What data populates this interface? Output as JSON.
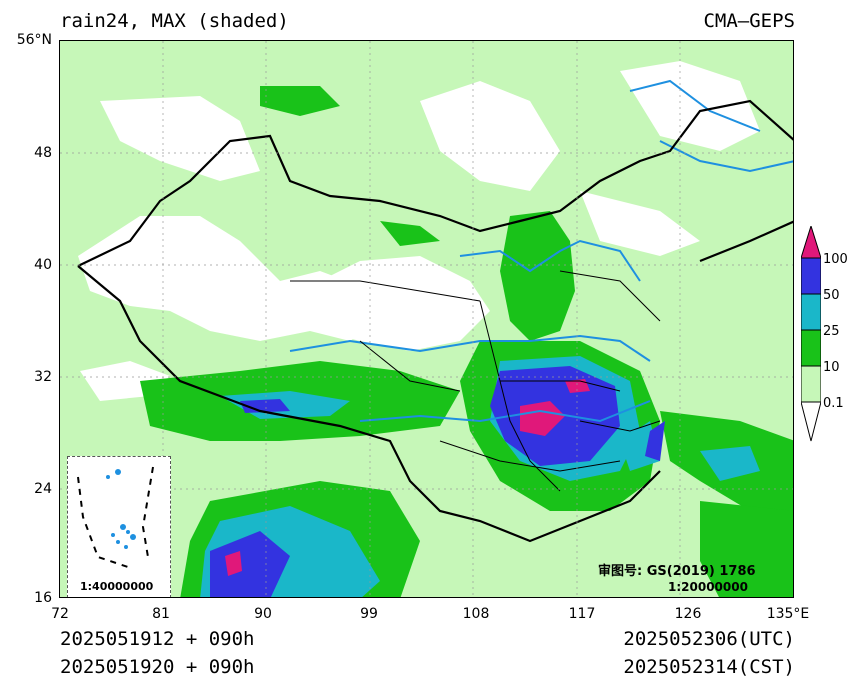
{
  "header": {
    "title": "rain24, MAX (shaded)",
    "model": "CMA—GEPS"
  },
  "footer": {
    "init_utc": "2025051912 + 090h",
    "init_cst": "2025051920 + 090h",
    "valid_utc": "2025052306(UTC)",
    "valid_cst": "2025052314(CST)"
  },
  "axes": {
    "lat_ticks": [
      "56°N",
      "48",
      "40",
      "32",
      "24",
      "16"
    ],
    "lon_ticks": [
      "72",
      "81",
      "90",
      "99",
      "108",
      "117",
      "126",
      "135°E"
    ]
  },
  "map_notes": {
    "review_number": "审图号: GS(2019) 1786",
    "main_scale": "1:20000000",
    "inset_scale": "1:40000000"
  },
  "legend": {
    "levels": [
      "100",
      "50",
      "25",
      "10",
      "0.1"
    ],
    "colors": [
      "#e0187a",
      "#3333e0",
      "#1ab7c9",
      "#19c219",
      "#c6f7b8",
      "#ffffff"
    ]
  },
  "colors": {
    "background": "#ffffff",
    "light_green": "#c6f7b8",
    "green": "#19c219",
    "cyan": "#1ab7c9",
    "blue": "#3333e0",
    "magenta": "#e0187a",
    "rivers": "#1e90e0",
    "borders": "#000000"
  }
}
